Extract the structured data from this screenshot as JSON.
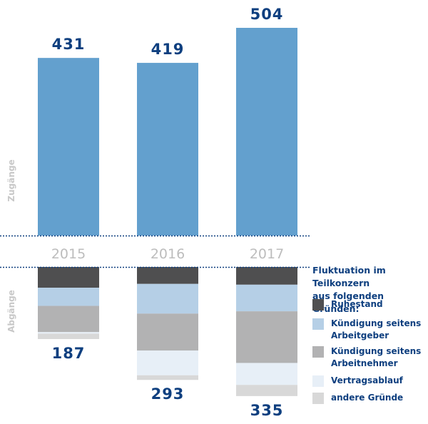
{
  "chart_data": {
    "type": "bar",
    "categories": [
      "2015",
      "2016",
      "2017"
    ],
    "axis_labels": {
      "top": "Zugänge",
      "bottom": "Abgänge"
    },
    "zugaenge": {
      "values": [
        431,
        419,
        504
      ],
      "color": "#63a0ce"
    },
    "abgaenge": {
      "totals": [
        187,
        293,
        335
      ],
      "series": [
        {
          "name": "Ruhestand",
          "color": "#4f4f50",
          "values": [
            54,
            44,
            46
          ]
        },
        {
          "name": "Kündigung seitens Arbeitgeber",
          "color": "#b5cfe6",
          "values": [
            47,
            77,
            69
          ]
        },
        {
          "name": "Kündigung seitens Arbeitnehmer",
          "color": "#b2b2b3",
          "values": [
            68,
            96,
            134
          ]
        },
        {
          "name": "Vertragsablauf",
          "color": "#e7eff7",
          "values": [
            4,
            64,
            57
          ]
        },
        {
          "name": "andere Gründe",
          "color": "#d8d8d8",
          "values": [
            14,
            12,
            29
          ]
        }
      ]
    },
    "legend": {
      "title_line1": "Fluktuation im Teilkonzern",
      "title_line2": "aus folgenden Gründen:",
      "placement": "right"
    },
    "colors": {
      "value_text": "#0e3f7f",
      "year_text": "#bdbdbd",
      "divider": "#0e3f7f"
    }
  }
}
